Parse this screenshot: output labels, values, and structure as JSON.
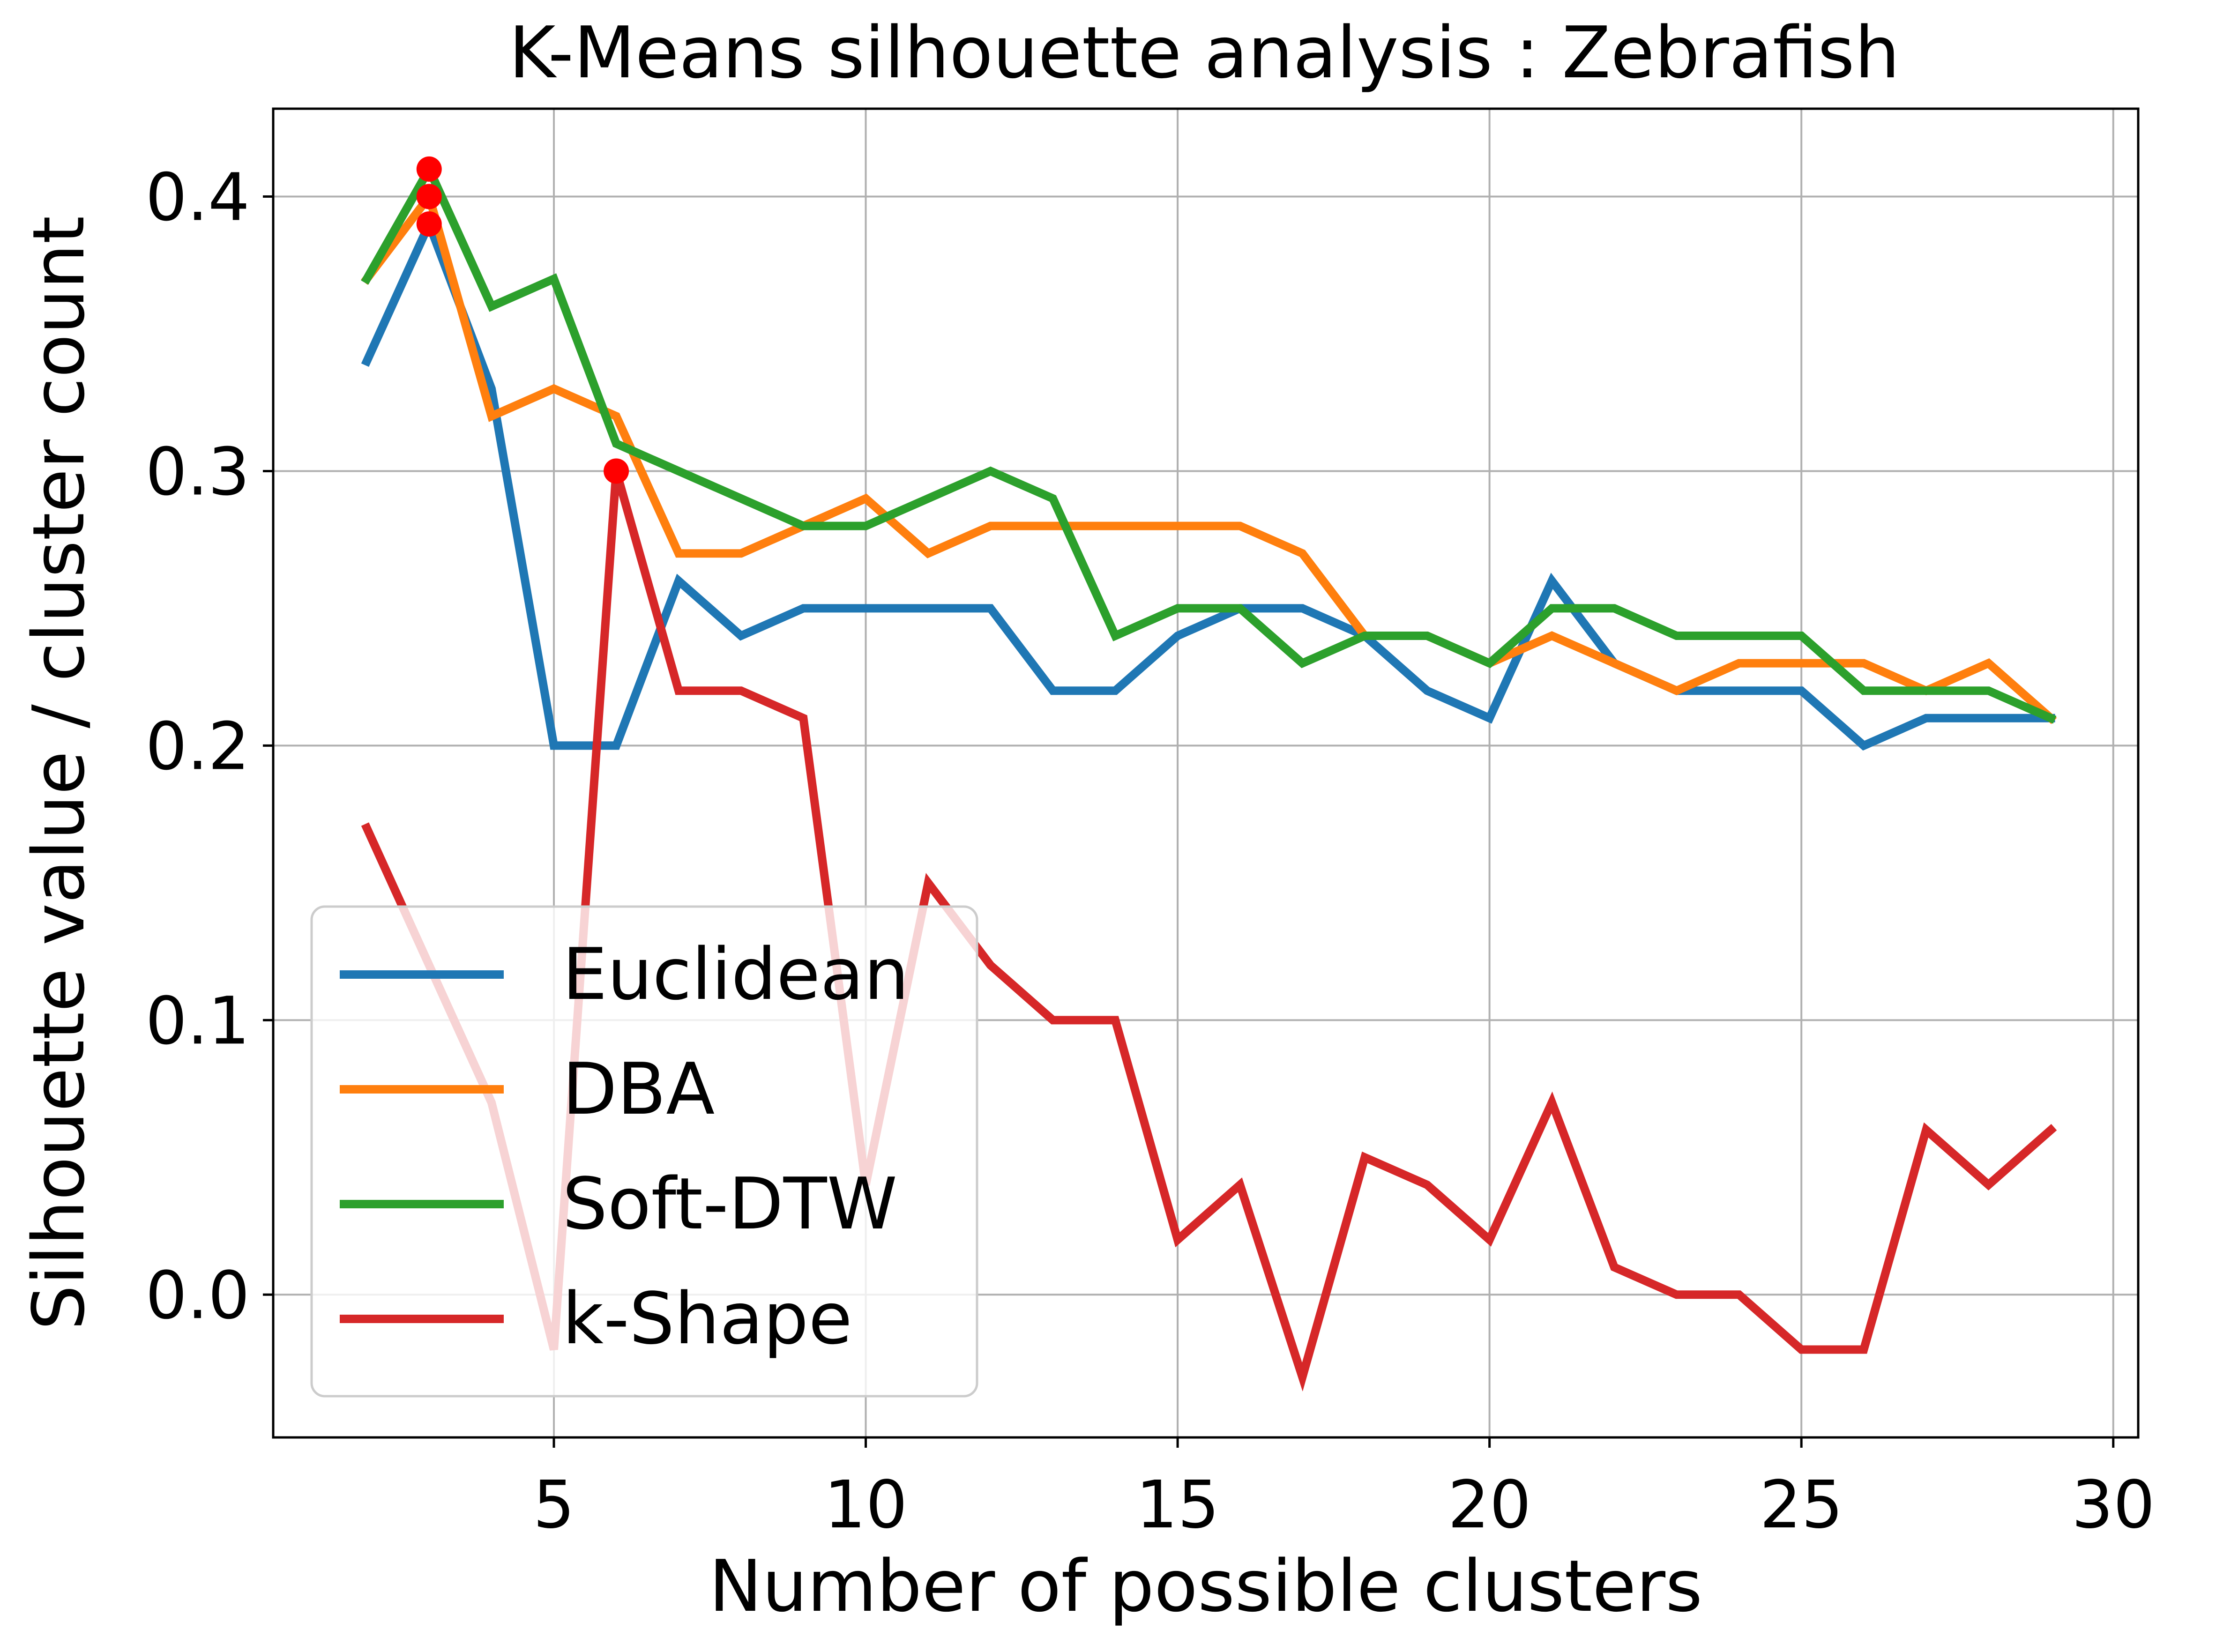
{
  "chart_data": {
    "type": "line",
    "title": "K-Means silhouette analysis : Zebrafish",
    "xlabel": "Number of possible clusters",
    "ylabel": "Silhouette value / cluster count",
    "xlim": [
      0.5,
      30.4
    ],
    "ylim": [
      -0.052,
      0.432
    ],
    "xticks": [
      5,
      10,
      15,
      20,
      25,
      30
    ],
    "yticks": [
      0.0,
      0.1,
      0.2,
      0.3,
      0.4
    ],
    "ytick_labels": [
      "0.0",
      "0.1",
      "0.2",
      "0.3",
      "0.4"
    ],
    "grid": true,
    "legend_position": "lower-left",
    "x": [
      2,
      3,
      4,
      5,
      6,
      7,
      8,
      9,
      10,
      11,
      12,
      13,
      14,
      15,
      16,
      17,
      18,
      19,
      20,
      21,
      22,
      23,
      24,
      25,
      26,
      27,
      28,
      29
    ],
    "series": [
      {
        "name": "Euclidean",
        "color": "#1f77b4",
        "values": [
          0.34,
          0.39,
          0.33,
          0.2,
          0.2,
          0.26,
          0.24,
          0.25,
          0.25,
          0.25,
          0.25,
          0.22,
          0.22,
          0.24,
          0.25,
          0.25,
          0.24,
          0.22,
          0.21,
          0.26,
          0.23,
          0.22,
          0.22,
          0.22,
          0.2,
          0.21,
          0.21,
          0.21
        ]
      },
      {
        "name": "DBA",
        "color": "#ff7f0e",
        "values": [
          0.37,
          0.4,
          0.32,
          0.33,
          0.32,
          0.27,
          0.27,
          0.28,
          0.29,
          0.27,
          0.28,
          0.28,
          0.28,
          0.28,
          0.28,
          0.27,
          0.24,
          0.24,
          0.23,
          0.24,
          0.23,
          0.22,
          0.23,
          0.23,
          0.23,
          0.22,
          0.23,
          0.21
        ]
      },
      {
        "name": "Soft-DTW",
        "color": "#2ca02c",
        "values": [
          0.37,
          0.41,
          0.36,
          0.37,
          0.31,
          0.3,
          0.29,
          0.28,
          0.28,
          0.29,
          0.3,
          0.29,
          0.24,
          0.25,
          0.25,
          0.23,
          0.24,
          0.24,
          0.23,
          0.25,
          0.25,
          0.24,
          0.24,
          0.24,
          0.22,
          0.22,
          0.22,
          0.21
        ]
      },
      {
        "name": "k-Shape",
        "color": "#d62728",
        "values": [
          0.17,
          0.12,
          0.07,
          -0.02,
          0.3,
          0.22,
          0.22,
          0.21,
          0.04,
          0.15,
          0.12,
          0.1,
          0.1,
          0.02,
          0.04,
          -0.03,
          0.05,
          0.04,
          0.02,
          0.07,
          0.01,
          0.0,
          0.0,
          -0.02,
          -0.02,
          0.06,
          0.04,
          0.06
        ]
      }
    ],
    "markers": {
      "color": "#ff0000",
      "points": [
        {
          "x": 3,
          "y": 0.41
        },
        {
          "x": 3,
          "y": 0.4
        },
        {
          "x": 3,
          "y": 0.39
        },
        {
          "x": 6,
          "y": 0.3
        }
      ]
    }
  }
}
